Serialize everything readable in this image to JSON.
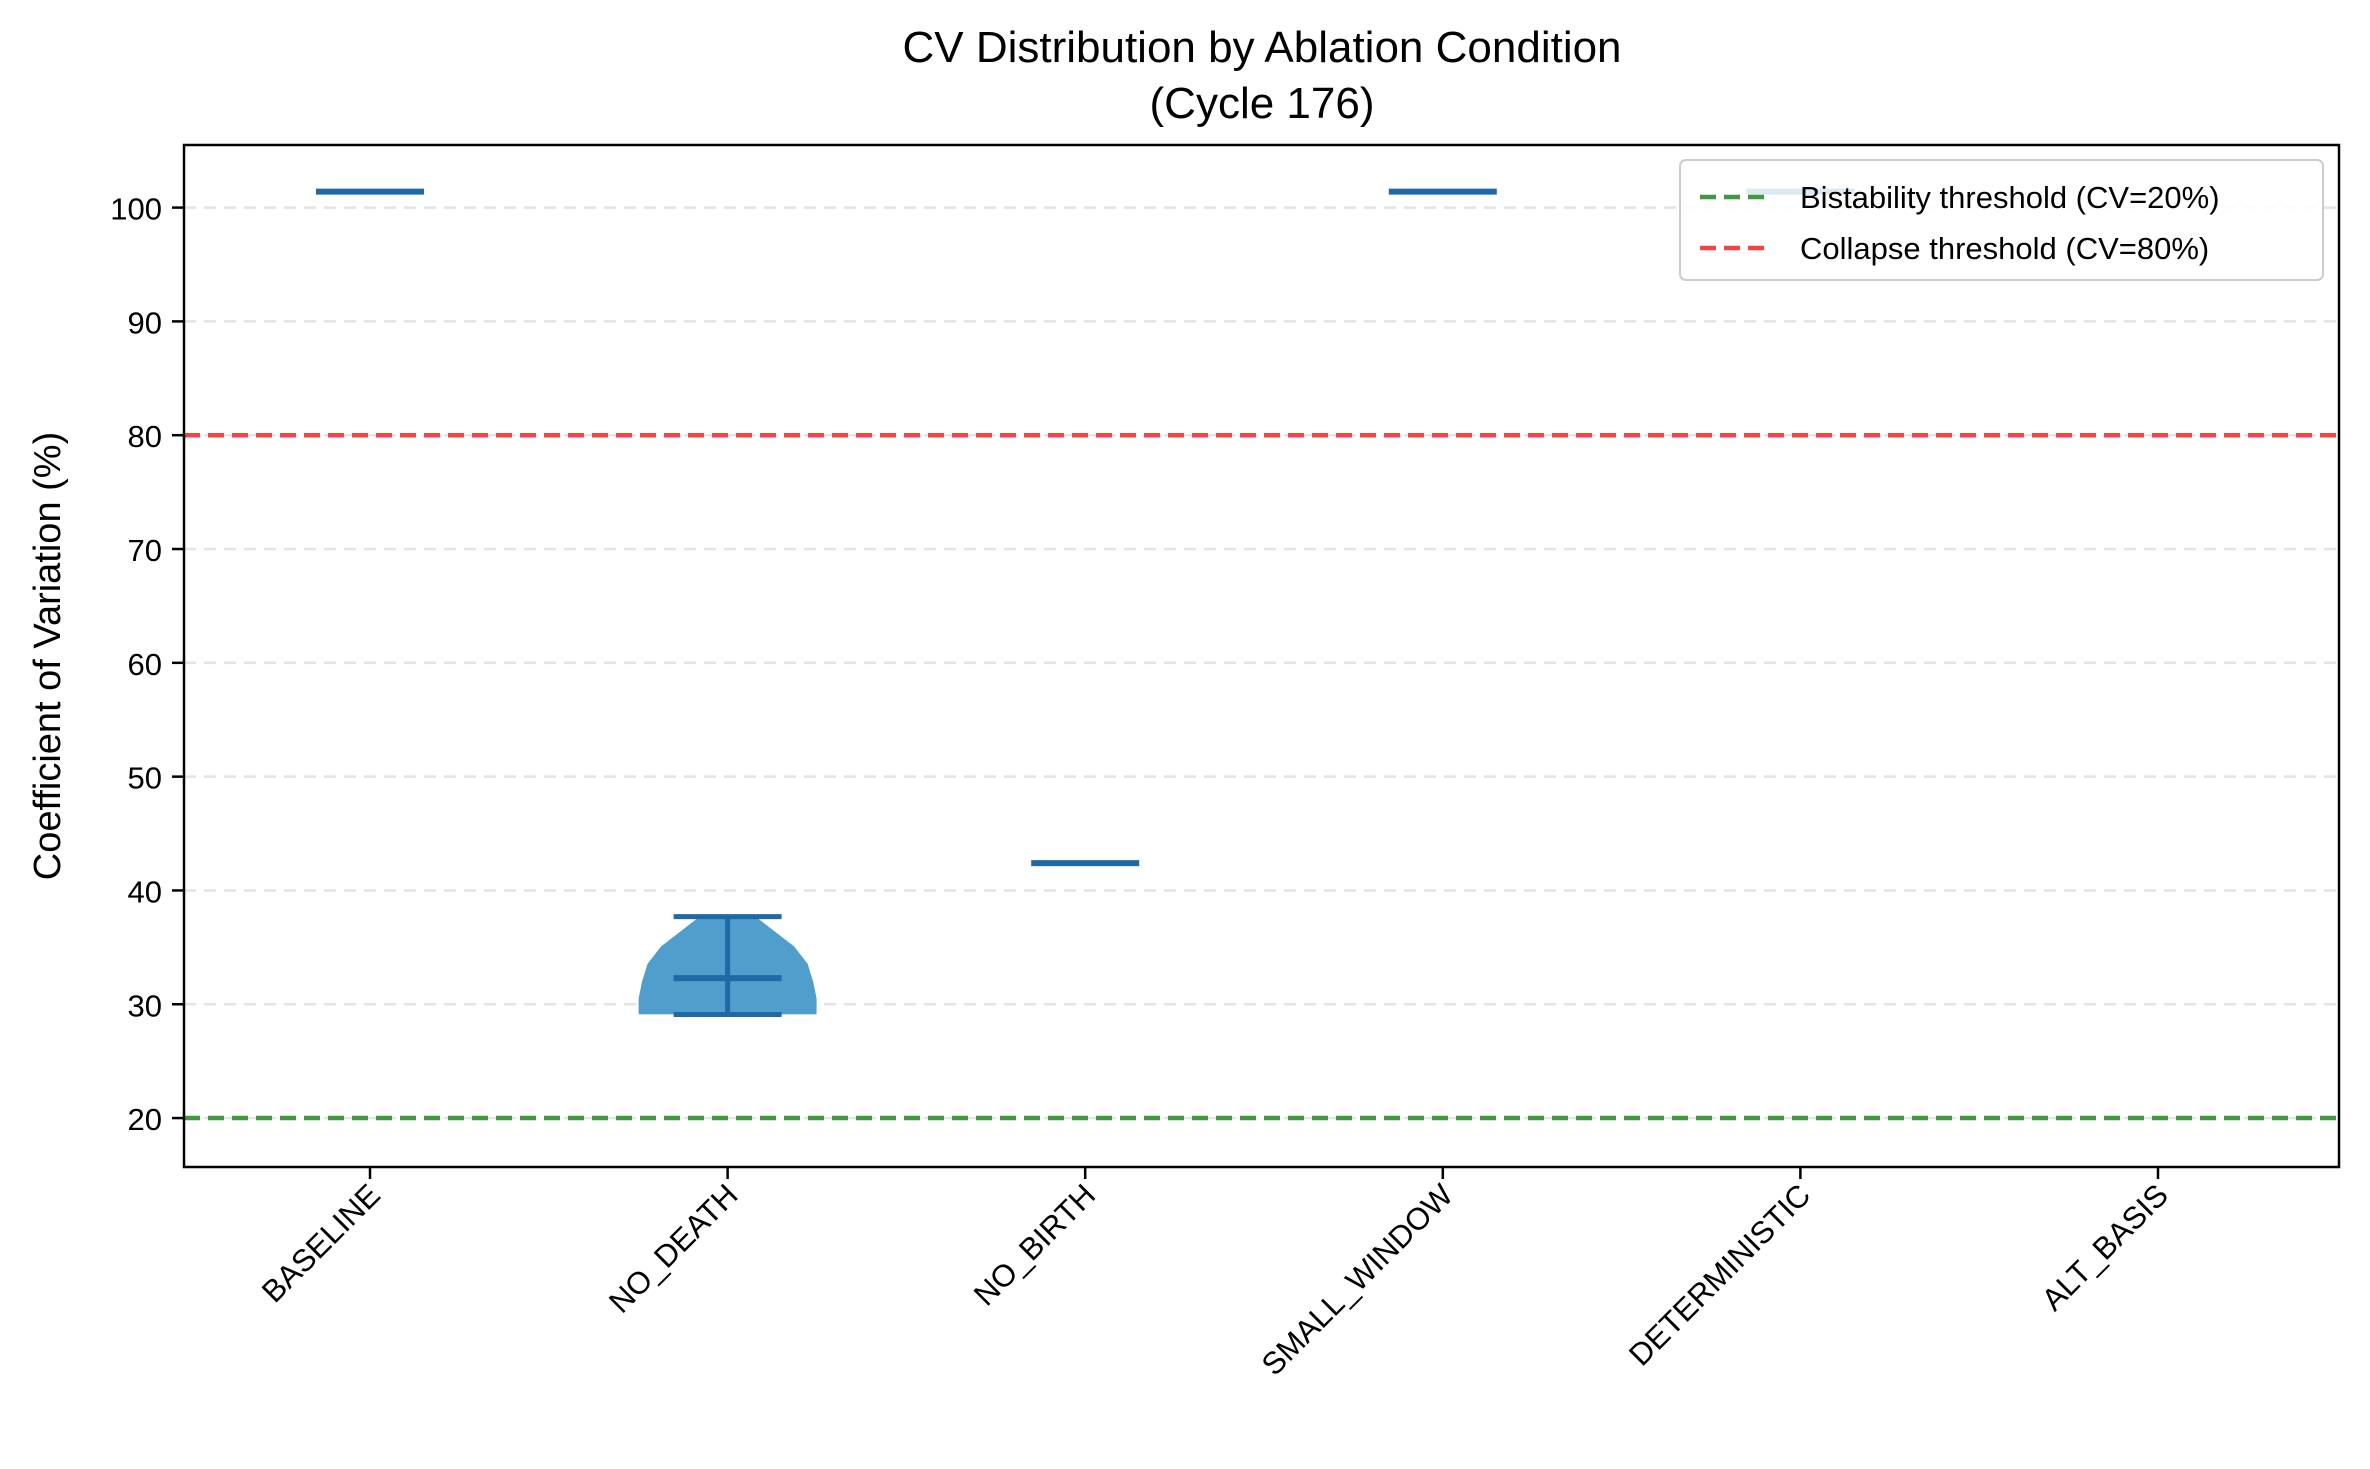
{
  "chart_data": {
    "type": "violin",
    "title": "CV Distribution by Ablation Condition",
    "subtitle": "(Cycle 176)",
    "ylabel": "Coefficient of Variation (%)",
    "xlabel": "",
    "categories": [
      "BASELINE",
      "NO_DEATH",
      "NO_BIRTH",
      "SMALL_WINDOW",
      "DETERMINISTIC",
      "ALT_BASIS"
    ],
    "ylim": [
      15.7,
      105.5
    ],
    "yticks": [
      20,
      30,
      40,
      50,
      60,
      70,
      80,
      90,
      100
    ],
    "grid": "y-dashed",
    "legend_position": "upper right",
    "violins": [
      {
        "category": "BASELINE",
        "min": 101.4,
        "median": 101.4,
        "max": 101.4
      },
      {
        "category": "NO_DEATH",
        "min": 29.1,
        "median": 32.3,
        "max": 37.7,
        "density_profile": [
          [
            29.2,
            1.0
          ],
          [
            30.5,
            1.0
          ],
          [
            32.0,
            0.96
          ],
          [
            33.5,
            0.9
          ],
          [
            35.0,
            0.75
          ],
          [
            36.5,
            0.5
          ],
          [
            37.7,
            0.3
          ]
        ]
      },
      {
        "category": "NO_BIRTH",
        "min": 42.4,
        "median": 42.4,
        "max": 42.4
      },
      {
        "category": "SMALL_WINDOW",
        "min": 101.4,
        "median": 101.4,
        "max": 101.4
      },
      {
        "category": "DETERMINISTIC",
        "min": 101.4,
        "median": 101.4,
        "max": 101.4
      },
      {
        "category": "ALT_BASIS",
        "min": null,
        "median": null,
        "max": null
      }
    ],
    "thresholds": [
      {
        "name": "Bistability threshold (CV=20%)",
        "value": 20,
        "color": "#3f9a3f"
      },
      {
        "name": "Collapse threshold (CV=80%)",
        "value": 80,
        "color": "#f24545"
      }
    ],
    "colors": {
      "violin_fill": "#4f9ecb",
      "violin_line": "#1f6aa6",
      "grid": "#e4e4e4"
    }
  }
}
